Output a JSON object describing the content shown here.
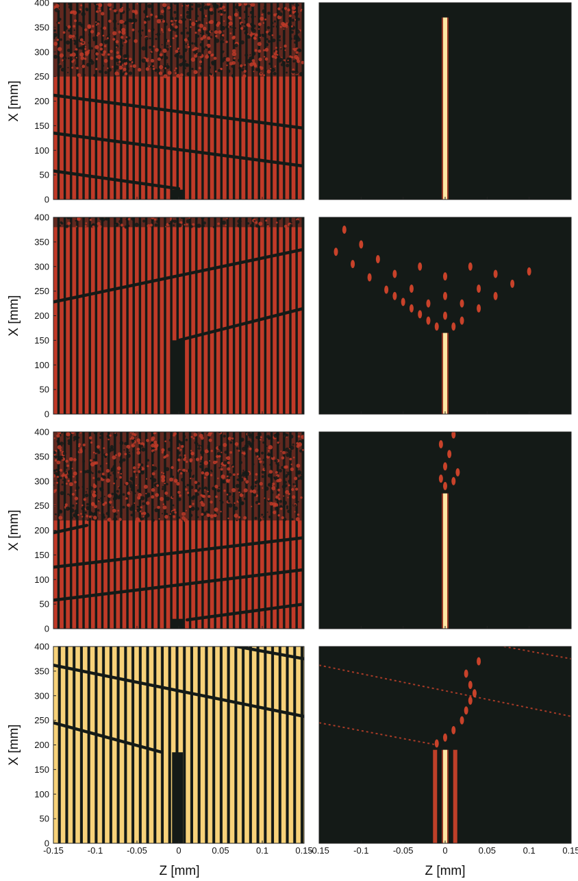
{
  "chart_data": {
    "type": "heatmap",
    "layout": {
      "rows": 4,
      "cols": 2
    },
    "xlabel": "Z  [mm]",
    "ylabel": "X  [mm]",
    "xlim": [
      -0.15,
      0.15
    ],
    "ylim": [
      0,
      400
    ],
    "x_ticks": [
      -0.15,
      -0.1,
      -0.05,
      0,
      0.05,
      0.1,
      0.15
    ],
    "x_tick_labels": [
      "-0.15",
      "-0.1",
      "-0.05",
      "0",
      "0.05",
      "0.1",
      "0.15"
    ],
    "y_ticks": [
      0,
      50,
      100,
      150,
      200,
      250,
      300,
      350,
      400
    ],
    "y_tick_labels": [
      "0",
      "50",
      "100",
      "150",
      "200",
      "250",
      "300",
      "350",
      "400"
    ],
    "colors": {
      "background_dark": "#141a17",
      "stripe_red": "#c03a28",
      "stripe_yellow": "#f7d27a",
      "core_bright": "#fde6a4",
      "spot": "#e84a2e"
    },
    "panels": [
      {
        "row": 1,
        "col": 1,
        "kind": "phase_stripes",
        "stripe_period_mm": 0.0075,
        "stripe_color": "#c03a28",
        "noise_above_x_mm": 250,
        "core": {
          "z_mm": 0.0,
          "x_range_mm": [
            0,
            20
          ]
        },
        "dark_lines": [
          {
            "z": [
              -0.15,
              0.0
            ],
            "x": [
              58,
              22
            ]
          },
          {
            "z": [
              -0.15,
              0.15
            ],
            "x": [
              135,
              68
            ]
          },
          {
            "z": [
              -0.15,
              0.15
            ],
            "x": [
              212,
              145
            ]
          }
        ]
      },
      {
        "row": 1,
        "col": 2,
        "kind": "intensity",
        "beam": {
          "z_mm": 0.0,
          "x_range_mm": [
            0,
            370
          ]
        },
        "scatter_spots": []
      },
      {
        "row": 2,
        "col": 1,
        "kind": "phase_stripes",
        "stripe_period_mm": 0.0075,
        "stripe_color": "#c03a28",
        "noise_above_x_mm": 380,
        "core": {
          "z_mm": 0.0,
          "x_range_mm": [
            0,
            150
          ]
        },
        "dark_lines": [
          {
            "z": [
              -0.15,
              0.15
            ],
            "x": [
              228,
              335
            ]
          },
          {
            "z": [
              0.0,
              0.15
            ],
            "x": [
              150,
              215
            ]
          }
        ]
      },
      {
        "row": 2,
        "col": 2,
        "kind": "intensity",
        "beam": {
          "z_mm": 0.0,
          "x_range_mm": [
            0,
            165
          ]
        },
        "scatter_spots": [
          {
            "z": -0.01,
            "x": 178
          },
          {
            "z": -0.02,
            "x": 190
          },
          {
            "z": -0.03,
            "x": 203
          },
          {
            "z": -0.04,
            "x": 215
          },
          {
            "z": -0.05,
            "x": 228
          },
          {
            "z": -0.06,
            "x": 240
          },
          {
            "z": -0.07,
            "x": 253
          },
          {
            "z": -0.09,
            "x": 278
          },
          {
            "z": -0.11,
            "x": 305
          },
          {
            "z": -0.13,
            "x": 330
          },
          {
            "z": 0.01,
            "x": 178
          },
          {
            "z": 0.02,
            "x": 190
          },
          {
            "z": 0.04,
            "x": 215
          },
          {
            "z": 0.06,
            "x": 240
          },
          {
            "z": 0.08,
            "x": 265
          },
          {
            "z": 0.1,
            "x": 290
          },
          {
            "z": 0.0,
            "x": 200
          },
          {
            "z": -0.02,
            "x": 225
          },
          {
            "z": 0.02,
            "x": 225
          },
          {
            "z": -0.04,
            "x": 255
          },
          {
            "z": 0.04,
            "x": 255
          },
          {
            "z": -0.06,
            "x": 285
          },
          {
            "z": 0.0,
            "x": 240
          },
          {
            "z": -0.08,
            "x": 315
          },
          {
            "z": 0.06,
            "x": 285
          },
          {
            "z": -0.1,
            "x": 345
          },
          {
            "z": 0.0,
            "x": 280
          },
          {
            "z": -0.03,
            "x": 300
          },
          {
            "z": 0.03,
            "x": 300
          },
          {
            "z": -0.12,
            "x": 375
          }
        ]
      },
      {
        "row": 3,
        "col": 1,
        "kind": "phase_stripes",
        "stripe_period_mm": 0.0075,
        "stripe_color": "#c03a28",
        "noise_above_x_mm": 220,
        "core": {
          "z_mm": 0.0,
          "x_range_mm": [
            0,
            20
          ]
        },
        "dark_lines": [
          {
            "z": [
              -0.15,
              0.15
            ],
            "x": [
              58,
              120
            ]
          },
          {
            "z": [
              -0.15,
              0.15
            ],
            "x": [
              125,
              185
            ]
          },
          {
            "z": [
              -0.15,
              -0.11
            ],
            "x": [
              195,
              210
            ]
          },
          {
            "z": [
              0.01,
              0.15
            ],
            "x": [
              18,
              50
            ]
          }
        ]
      },
      {
        "row": 3,
        "col": 2,
        "kind": "intensity",
        "beam": {
          "z_mm": 0.0,
          "x_range_mm": [
            0,
            275
          ]
        },
        "scatter_spots": [
          {
            "z": 0.0,
            "x": 290
          },
          {
            "z": 0.01,
            "x": 300
          },
          {
            "z": -0.005,
            "x": 305
          },
          {
            "z": 0.015,
            "x": 318
          },
          {
            "z": 0.0,
            "x": 330
          },
          {
            "z": 0.005,
            "x": 355
          },
          {
            "z": -0.005,
            "x": 375
          },
          {
            "z": 0.01,
            "x": 395
          }
        ]
      },
      {
        "row": 4,
        "col": 1,
        "kind": "phase_stripes",
        "stripe_period_mm": 0.0088,
        "stripe_color": "#f7d27a",
        "noise_above_x_mm": 410,
        "core": {
          "z_mm": 0.0,
          "x_range_mm": [
            0,
            185
          ]
        },
        "dark_lines": [
          {
            "z": [
              -0.15,
              -0.02
            ],
            "x": [
              245,
              185
            ]
          },
          {
            "z": [
              -0.15,
              0.15
            ],
            "x": [
              362,
              258
            ]
          },
          {
            "z": [
              0.07,
              0.15
            ],
            "x": [
              400,
              375
            ]
          }
        ]
      },
      {
        "row": 4,
        "col": 2,
        "kind": "intensity",
        "beam": {
          "z_mm": 0.0,
          "x_range_mm": [
            0,
            190
          ]
        },
        "scatter_spots": [
          {
            "z": -0.01,
            "x": 203
          },
          {
            "z": 0.0,
            "x": 215
          },
          {
            "z": 0.01,
            "x": 230
          },
          {
            "z": 0.02,
            "x": 250
          },
          {
            "z": 0.025,
            "x": 270
          },
          {
            "z": 0.03,
            "x": 290
          },
          {
            "z": 0.035,
            "x": 305
          },
          {
            "z": 0.03,
            "x": 322
          },
          {
            "z": 0.025,
            "x": 345
          },
          {
            "z": 0.04,
            "x": 370
          }
        ],
        "faint_lines": [
          {
            "z": [
              -0.15,
              -0.01
            ],
            "x": [
              245,
              200
            ]
          },
          {
            "z": [
              -0.15,
              0.15
            ],
            "x": [
              362,
              258
            ]
          },
          {
            "z": [
              0.07,
              0.15
            ],
            "x": [
              400,
              375
            ]
          }
        ]
      }
    ]
  }
}
